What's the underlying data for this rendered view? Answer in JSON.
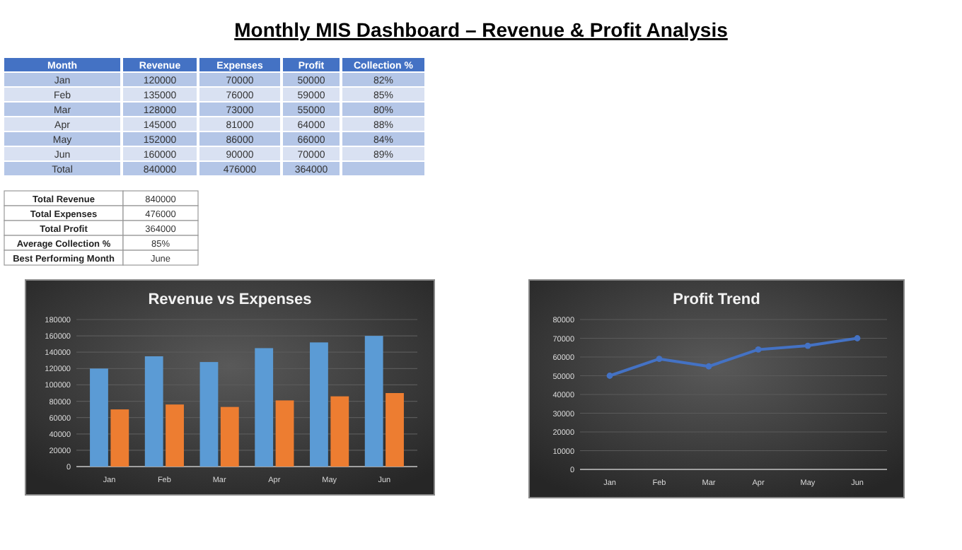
{
  "chart_data": [
    {
      "type": "other",
      "title": "Monthly MIS Dashboard – Revenue & Profit Analysis",
      "annotations": [
        "Month",
        "Revenue",
        "Expenses",
        "Profit",
        "Collection %",
        "Jan",
        "120000",
        "70000",
        "50000",
        "82%",
        "Feb",
        "135000",
        "76000",
        "59000",
        "85%",
        "Mar",
        "128000",
        "73000",
        "55000",
        "80%",
        "Apr",
        "145000",
        "81000",
        "64000",
        "88%",
        "May",
        "152000",
        "86000",
        "66000",
        "84%",
        "Jun",
        "160000",
        "90000",
        "70000",
        "89%",
        "Total",
        "840000",
        "476000",
        "364000",
        "Total Revenue",
        "840000",
        "Total Expenses",
        "476000",
        "Total Profit",
        "364000",
        "Average Collection %",
        "85%",
        "Best Performing Month",
        "June"
      ]
    },
    {
      "type": "bar",
      "title": "Revenue vs Expenses",
      "categories": [
        "Jan",
        "Feb",
        "Mar",
        "Apr",
        "May",
        "Jun"
      ],
      "series": [
        {
          "color": "#5b9bd5",
          "values": [
            120000,
            135000,
            128000,
            145000,
            152000,
            160000
          ]
        },
        {
          "color": "#ed7d31",
          "values": [
            70000,
            76000,
            73000,
            81000,
            86000,
            90000
          ]
        }
      ],
      "ylim": [
        0,
        180000
      ],
      "yticks": [
        0,
        20000,
        40000,
        60000,
        80000,
        100000,
        120000,
        140000,
        160000,
        180000
      ],
      "grid": "y"
    },
    {
      "type": "line",
      "title": "Profit Trend",
      "categories": [
        "Jan",
        "Feb",
        "Mar",
        "Apr",
        "May",
        "Jun"
      ],
      "series": [
        {
          "color": "#4472c4",
          "values": [
            50000,
            59000,
            55000,
            64000,
            66000,
            70000
          ]
        }
      ],
      "ylim": [
        0,
        80000
      ],
      "yticks": [
        0,
        10000,
        20000,
        30000,
        40000,
        50000,
        60000,
        70000,
        80000
      ],
      "grid": "y",
      "marker": "circle",
      "line_style": "solid"
    }
  ]
}
